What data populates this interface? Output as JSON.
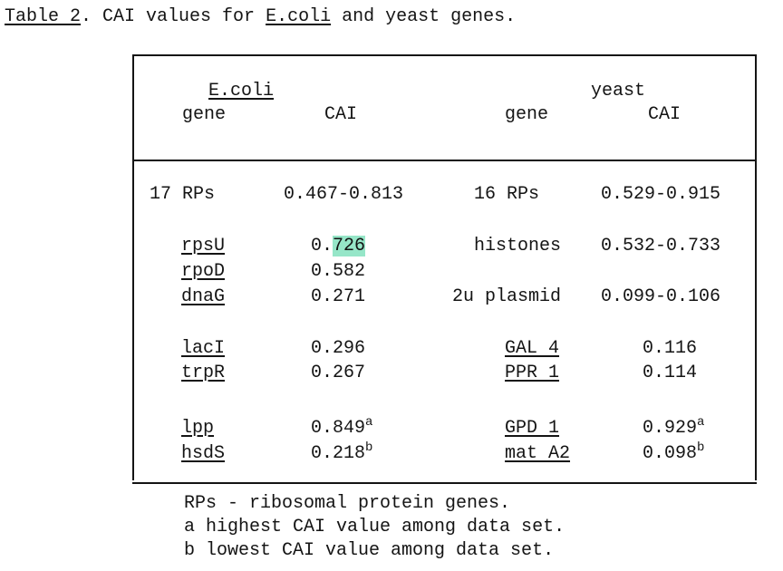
{
  "caption": {
    "table_ref": "Table 2",
    "text_a": ". CAI values for ",
    "ecoli": "E.coli",
    "text_b": " and yeast genes."
  },
  "headers": {
    "ecoli_group": "E.coli",
    "yeast_group": "yeast",
    "ecoli_gene": "gene",
    "ecoli_cai": "CAI",
    "yeast_gene": "gene",
    "yeast_cai": "CAI"
  },
  "rows": {
    "r1": {
      "ecoli_gene": "17 RPs",
      "ecoli_cai": "0.467-0.813",
      "yeast_gene": "16 RPs",
      "yeast_cai": "0.529-0.915"
    },
    "r2": {
      "ecoli_gene": "rpsU",
      "ecoli_cai_prefix": "0.",
      "ecoli_cai_highlight": "726",
      "yeast_gene": "histones",
      "yeast_cai": "0.532-0.733"
    },
    "r3": {
      "ecoli_gene": "rpoD",
      "ecoli_cai": "0.582"
    },
    "r4": {
      "ecoli_gene": "dnaG",
      "ecoli_cai": "0.271",
      "yeast_gene": "2u plasmid",
      "yeast_cai": "0.099-0.106"
    },
    "r5": {
      "ecoli_gene": "lacI",
      "ecoli_cai": "0.296",
      "yeast_gene": "GAL 4",
      "yeast_cai": "0.116"
    },
    "r6": {
      "ecoli_gene": "trpR",
      "ecoli_cai": "0.267",
      "yeast_gene": "PPR 1",
      "yeast_cai": "0.114"
    },
    "r7": {
      "ecoli_gene": "lpp",
      "ecoli_cai": "0.849",
      "ecoli_sup": "a",
      "yeast_gene": "GPD 1",
      "yeast_cai": "0.929",
      "yeast_sup": "a"
    },
    "r8": {
      "ecoli_gene": "hsdS",
      "ecoli_cai": "0.218",
      "ecoli_sup": "b",
      "yeast_gene": "mat A2",
      "yeast_cai": "0.098",
      "yeast_sup": "b"
    }
  },
  "footnotes": {
    "rps": "RPs - ribosomal protein genes.",
    "a": "a highest CAI value among data set.",
    "b": "b lowest CAI value among data set."
  }
}
